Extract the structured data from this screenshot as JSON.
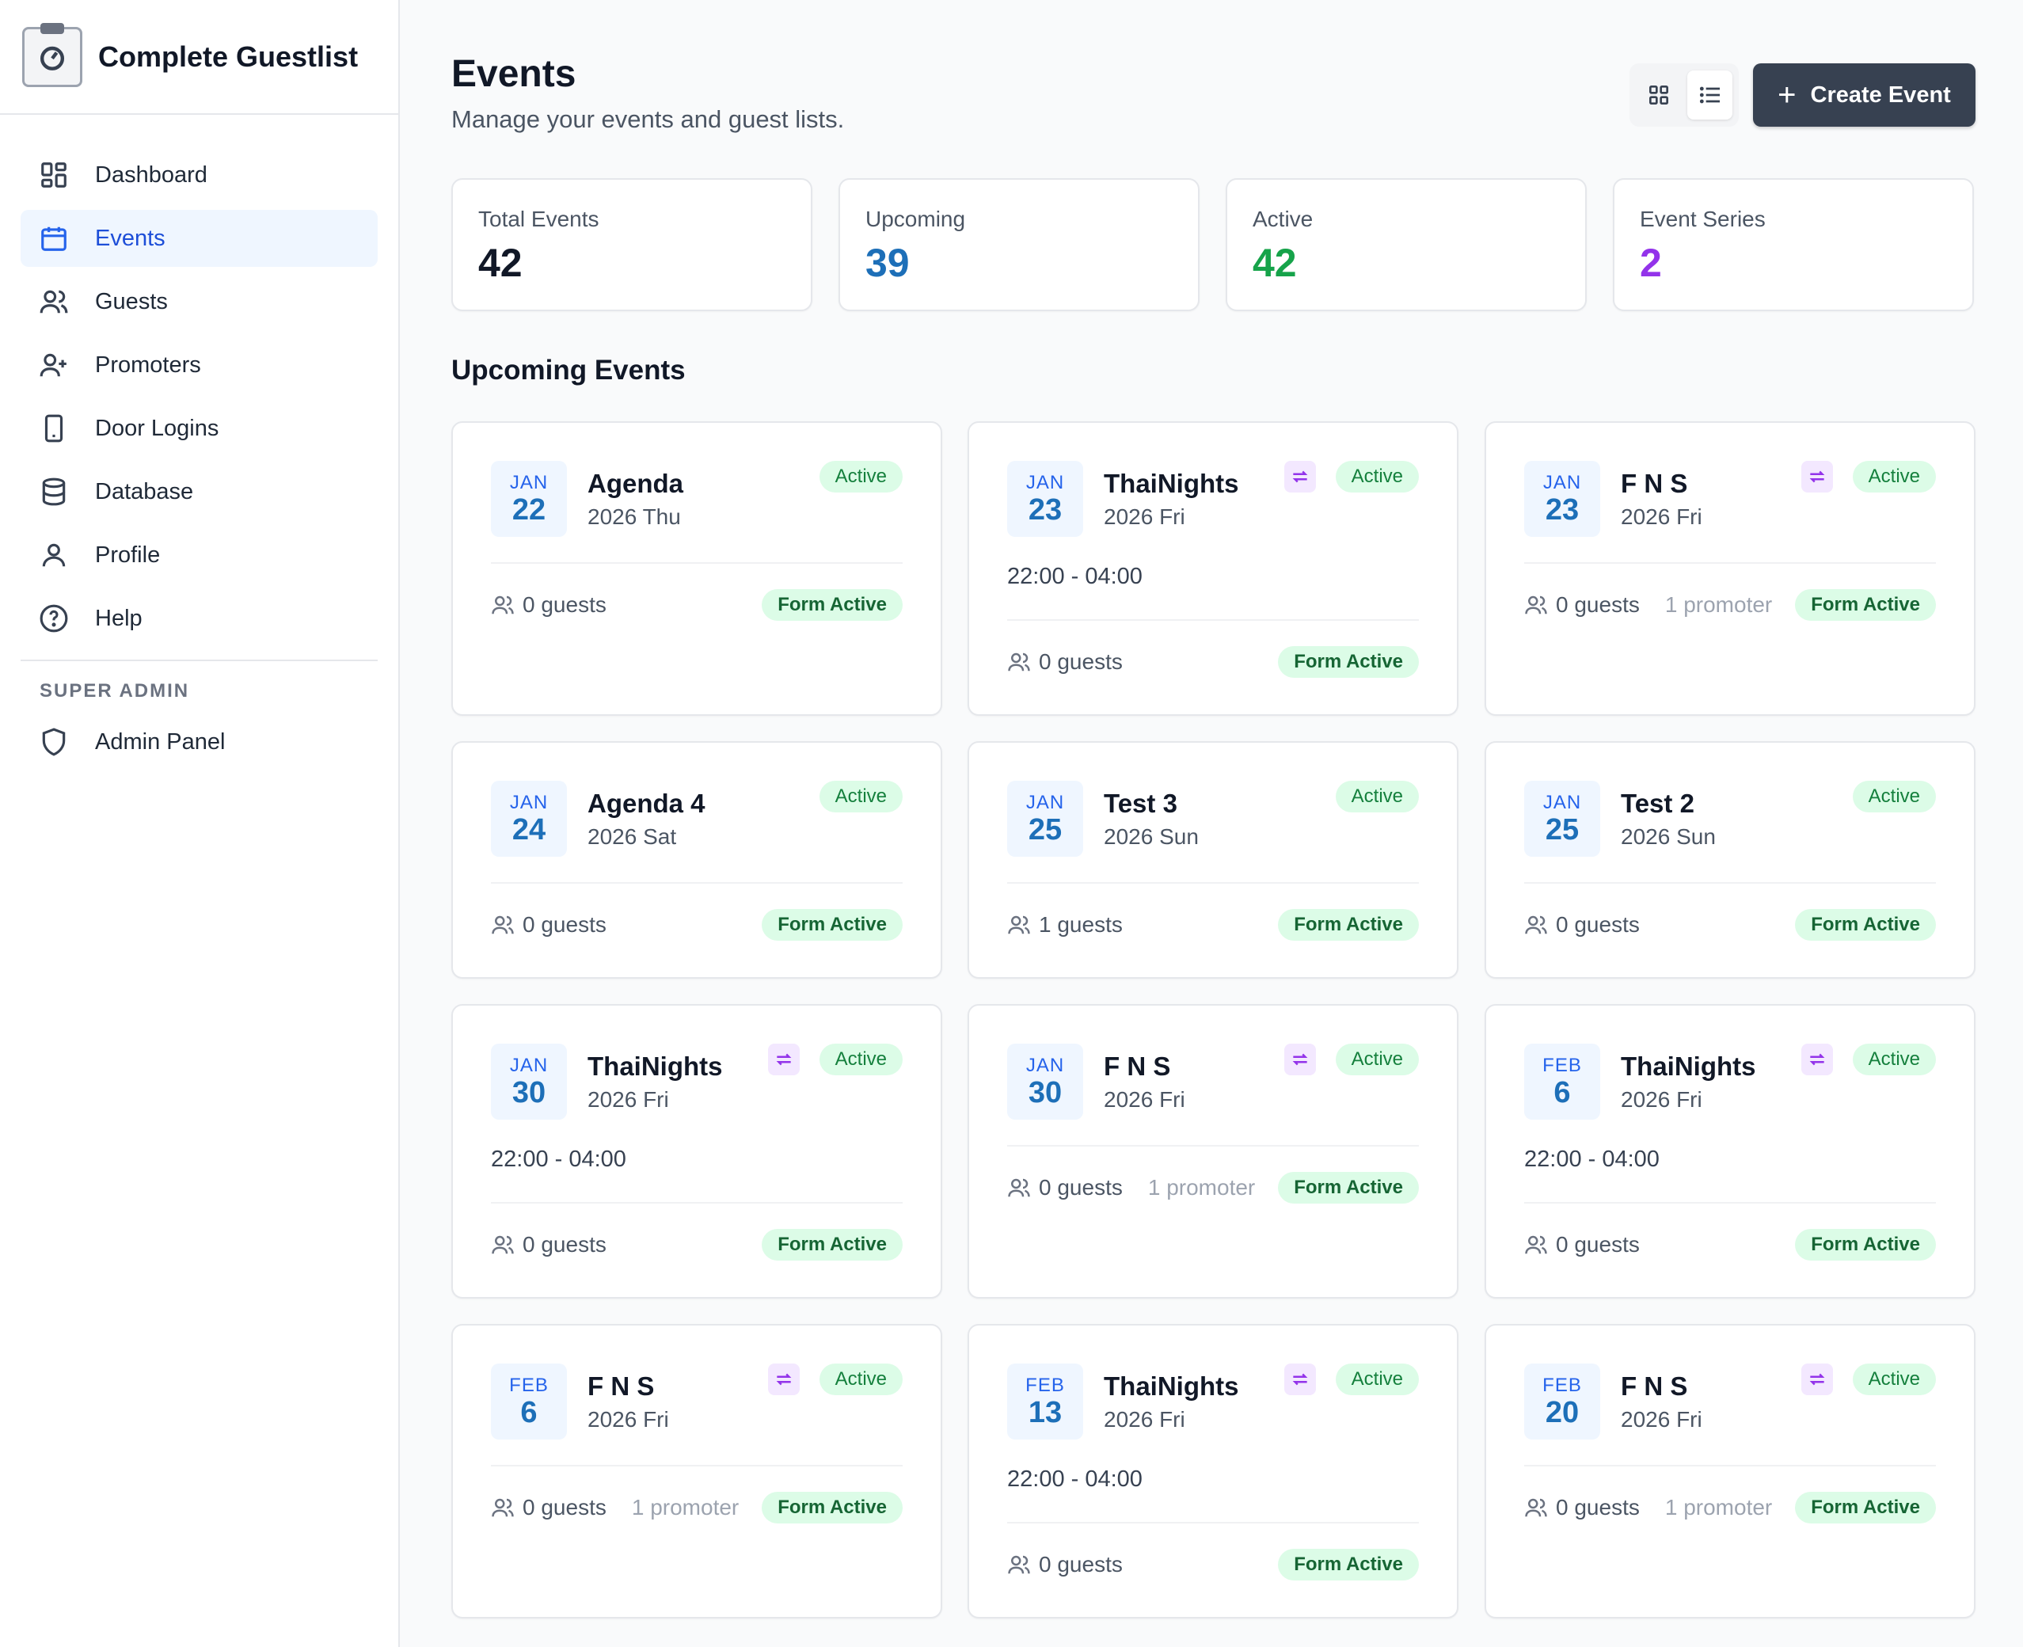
{
  "app": {
    "name": "Complete Guestlist"
  },
  "sidebar": {
    "items": [
      {
        "label": "Dashboard",
        "icon": "dashboard-icon"
      },
      {
        "label": "Events",
        "icon": "calendar-icon",
        "active": true
      },
      {
        "label": "Guests",
        "icon": "users-icon"
      },
      {
        "label": "Promoters",
        "icon": "user-plus-icon"
      },
      {
        "label": "Door Logins",
        "icon": "phone-icon"
      },
      {
        "label": "Database",
        "icon": "database-icon"
      },
      {
        "label": "Profile",
        "icon": "user-icon"
      },
      {
        "label": "Help",
        "icon": "help-icon"
      }
    ],
    "section_label": "SUPER ADMIN",
    "admin_item": {
      "label": "Admin Panel",
      "icon": "shield-icon"
    }
  },
  "header": {
    "title": "Events",
    "subtitle": "Manage your events and guest lists.",
    "create_label": "Create Event"
  },
  "stats": [
    {
      "label": "Total Events",
      "value": "42",
      "color": "#111827"
    },
    {
      "label": "Upcoming",
      "value": "39",
      "color": "#1d6fb8"
    },
    {
      "label": "Active",
      "value": "42",
      "color": "#16a34a"
    },
    {
      "label": "Event Series",
      "value": "2",
      "color": "#9333ea"
    }
  ],
  "section_title": "Upcoming Events",
  "events": [
    {
      "month": "JAN",
      "day": "22",
      "title": "Agenda",
      "sub": "2026 Thu",
      "status": "Active",
      "series": false,
      "time": "",
      "guests": "0 guests",
      "promoter": "",
      "form": "Form Active"
    },
    {
      "month": "JAN",
      "day": "23",
      "title": "ThaiNights",
      "sub": "2026 Fri",
      "status": "Active",
      "series": true,
      "time": "22:00 - 04:00",
      "guests": "0 guests",
      "promoter": "",
      "form": "Form Active"
    },
    {
      "month": "JAN",
      "day": "23",
      "title": "F N S",
      "sub": "2026 Fri",
      "status": "Active",
      "series": true,
      "time": "",
      "guests": "0 guests",
      "promoter": "1 promoter",
      "form": "Form Active"
    },
    {
      "month": "JAN",
      "day": "24",
      "title": "Agenda 4",
      "sub": "2026 Sat",
      "status": "Active",
      "series": false,
      "time": "",
      "guests": "0 guests",
      "promoter": "",
      "form": "Form Active"
    },
    {
      "month": "JAN",
      "day": "25",
      "title": "Test 3",
      "sub": "2026 Sun",
      "status": "Active",
      "series": false,
      "time": "",
      "guests": "1 guests",
      "promoter": "",
      "form": "Form Active"
    },
    {
      "month": "JAN",
      "day": "25",
      "title": "Test 2",
      "sub": "2026 Sun",
      "status": "Active",
      "series": false,
      "time": "",
      "guests": "0 guests",
      "promoter": "",
      "form": "Form Active"
    },
    {
      "month": "JAN",
      "day": "30",
      "title": "ThaiNights",
      "sub": "2026 Fri",
      "status": "Active",
      "series": true,
      "time": "22:00 - 04:00",
      "guests": "0 guests",
      "promoter": "",
      "form": "Form Active"
    },
    {
      "month": "JAN",
      "day": "30",
      "title": "F N S",
      "sub": "2026 Fri",
      "status": "Active",
      "series": true,
      "time": "",
      "guests": "0 guests",
      "promoter": "1 promoter",
      "form": "Form Active"
    },
    {
      "month": "FEB",
      "day": "6",
      "title": "ThaiNights",
      "sub": "2026 Fri",
      "status": "Active",
      "series": true,
      "time": "22:00 - 04:00",
      "guests": "0 guests",
      "promoter": "",
      "form": "Form Active"
    },
    {
      "month": "FEB",
      "day": "6",
      "title": "F N S",
      "sub": "2026 Fri",
      "status": "Active",
      "series": true,
      "time": "",
      "guests": "0 guests",
      "promoter": "1 promoter",
      "form": "Form Active"
    },
    {
      "month": "FEB",
      "day": "13",
      "title": "ThaiNights",
      "sub": "2026 Fri",
      "status": "Active",
      "series": true,
      "time": "22:00 - 04:00",
      "guests": "0 guests",
      "promoter": "",
      "form": "Form Active"
    },
    {
      "month": "FEB",
      "day": "20",
      "title": "F N S",
      "sub": "2026 Fri",
      "status": "Active",
      "series": true,
      "time": "",
      "guests": "0 guests",
      "promoter": "1 promoter",
      "form": "Form Active"
    }
  ]
}
